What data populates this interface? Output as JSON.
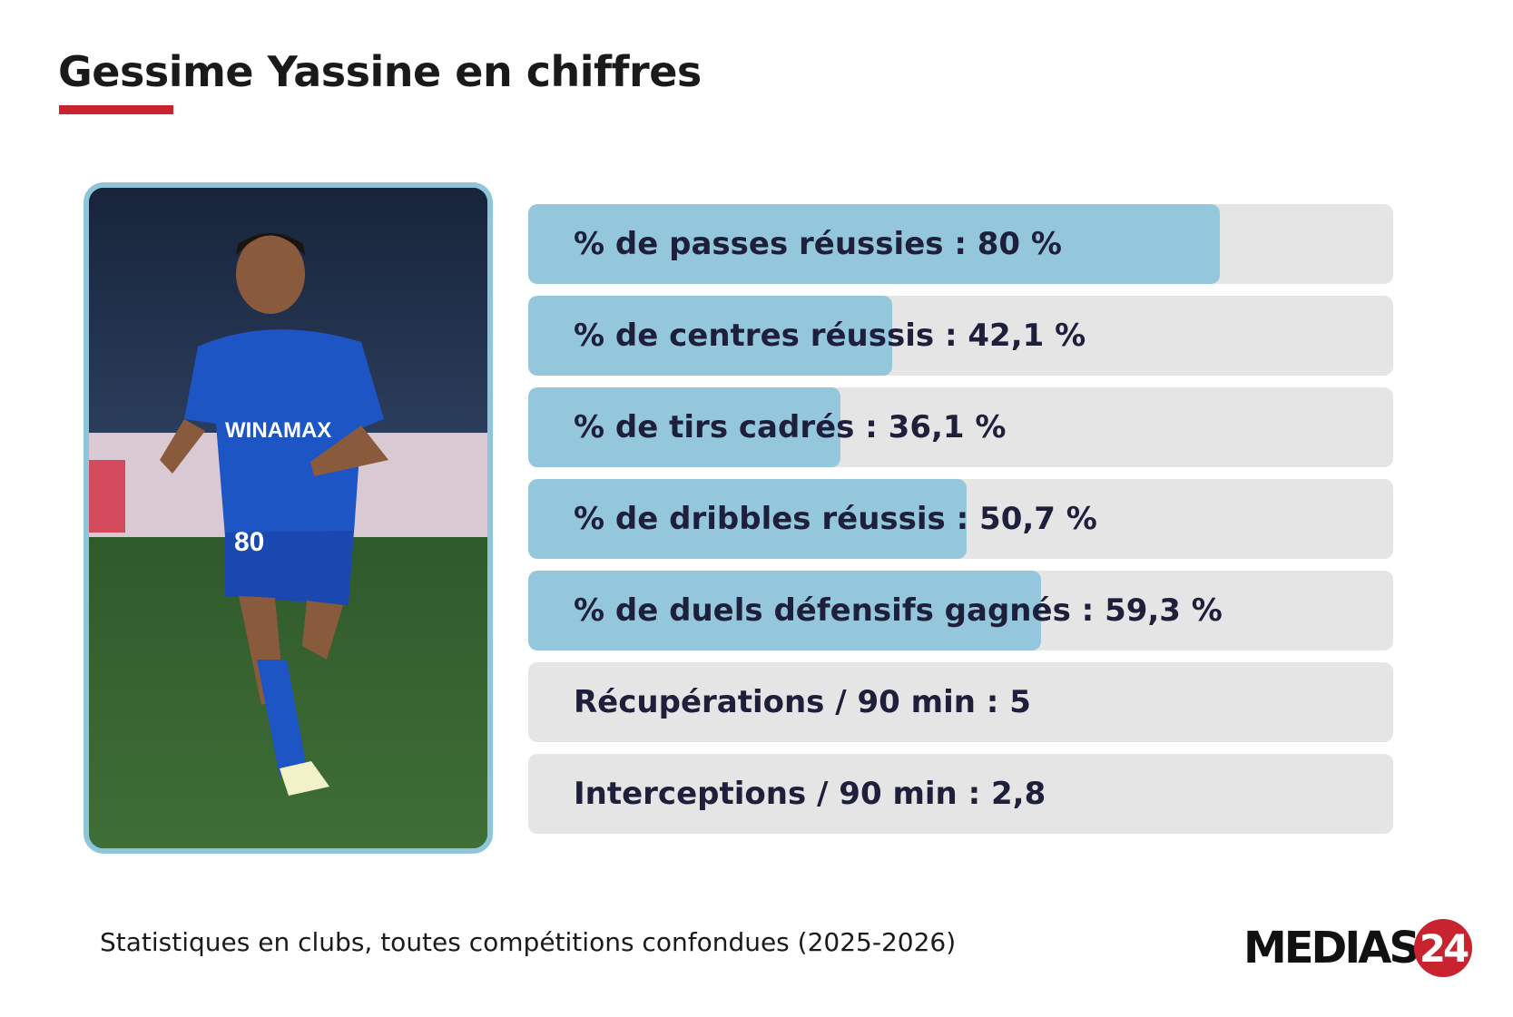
{
  "title": "Gessime Yassine en chiffres",
  "colors": {
    "accent_red": "#c8232f",
    "bar_fill": "#95c7dc",
    "bar_track": "#e5e5e5",
    "frame": "#8fc5da"
  },
  "chart_data": {
    "type": "bar",
    "orientation": "horizontal",
    "categories": [
      "% de passes réussies",
      "% de centres réussis",
      "% de tirs cadrés",
      "% de dribbles réussis",
      "% de duels défensifs gagnés",
      "Récupérations / 90 min",
      "Interceptions / 90 min"
    ],
    "values": [
      80,
      42.1,
      36.1,
      50.7,
      59.3,
      5,
      2.8
    ],
    "labels": [
      "% de passes réussies : 80 %",
      "% de centres réussis : 42,1 %",
      "% de tirs cadrés : 36,1 %",
      "% de dribbles réussis : 50,7 %",
      "% de duels défensifs gagnés : 59,3 %",
      "Récupérations / 90 min : 5",
      "Interceptions / 90 min : 2,8"
    ],
    "percent_rows": [
      true,
      true,
      true,
      true,
      true,
      false,
      false
    ],
    "xlim": [
      0,
      100
    ]
  },
  "footnote": "Statistiques en clubs, toutes compétitions confondues (2025-2026)",
  "logo": {
    "text": "MEDIAS",
    "badge": "24"
  },
  "watermark": "MEDIAS24",
  "photo": {
    "shirt_sponsor": "WINAMAX",
    "shirt_number": "80"
  }
}
